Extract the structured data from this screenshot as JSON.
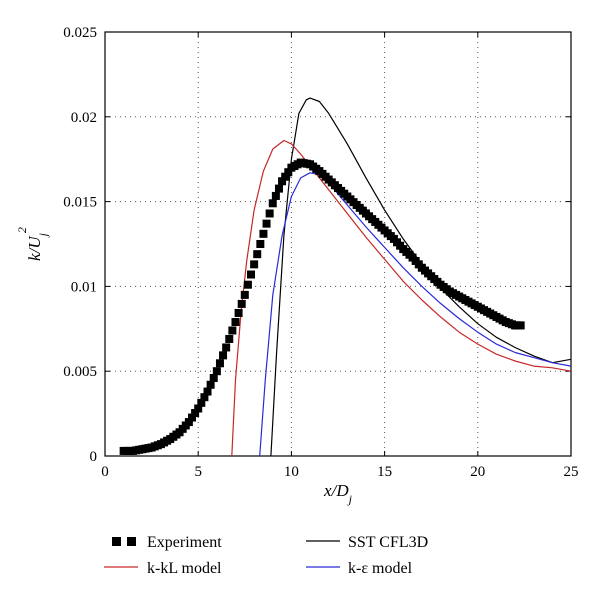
{
  "chart_data": {
    "type": "line",
    "xlabel": "x/D_j",
    "ylabel": "k/U_j^2",
    "xlim": [
      0,
      25
    ],
    "ylim": [
      0,
      0.025
    ],
    "x_ticks": [
      "0",
      "5",
      "10",
      "15",
      "20",
      "25"
    ],
    "y_ticks": [
      "0",
      "0.005",
      "0.01",
      "0.015",
      "0.02",
      "0.025"
    ],
    "grid": "dotted",
    "legend_position": "below-plot",
    "series": [
      {
        "name": "Experiment",
        "style": "square-markers",
        "color": "#000000",
        "points": [
          [
            1,
            0.0003
          ],
          [
            1.5,
            0.0003
          ],
          [
            2,
            0.0004
          ],
          [
            2.5,
            0.0005
          ],
          [
            3,
            0.0007
          ],
          [
            3.5,
            0.001
          ],
          [
            4,
            0.0014
          ],
          [
            4.5,
            0.002
          ],
          [
            5,
            0.0028
          ],
          [
            5.5,
            0.0038
          ],
          [
            6,
            0.005
          ],
          [
            6.5,
            0.0064
          ],
          [
            7,
            0.0079
          ],
          [
            7.5,
            0.0095
          ],
          [
            8,
            0.0113
          ],
          [
            8.5,
            0.0131
          ],
          [
            9,
            0.0149
          ],
          [
            9.5,
            0.0162
          ],
          [
            10,
            0.017
          ],
          [
            10.5,
            0.0173
          ],
          [
            11,
            0.0172
          ],
          [
            11.5,
            0.0168
          ],
          [
            12,
            0.0163
          ],
          [
            12.5,
            0.0158
          ],
          [
            13,
            0.0153
          ],
          [
            13.5,
            0.0148
          ],
          [
            14,
            0.0143
          ],
          [
            14.5,
            0.0138
          ],
          [
            15,
            0.0133
          ],
          [
            15.5,
            0.0128
          ],
          [
            16,
            0.0122
          ],
          [
            16.5,
            0.0117
          ],
          [
            17,
            0.0111
          ],
          [
            17.5,
            0.0106
          ],
          [
            18,
            0.0101
          ],
          [
            18.5,
            0.0097
          ],
          [
            19,
            0.0094
          ],
          [
            19.5,
            0.0091
          ],
          [
            20,
            0.0088
          ],
          [
            20.5,
            0.0085
          ],
          [
            21,
            0.0082
          ],
          [
            21.5,
            0.0079
          ],
          [
            22,
            0.0077
          ],
          [
            22.3,
            0.0077
          ]
        ]
      },
      {
        "name": "SST CFL3D",
        "style": "line",
        "color": "#000000",
        "points": [
          [
            8.9,
            0
          ],
          [
            9.2,
            0.006
          ],
          [
            9.6,
            0.013
          ],
          [
            10,
            0.0175
          ],
          [
            10.4,
            0.0202
          ],
          [
            10.8,
            0.021
          ],
          [
            11,
            0.0211
          ],
          [
            11.5,
            0.0209
          ],
          [
            12,
            0.0202
          ],
          [
            13,
            0.0184
          ],
          [
            14,
            0.0164
          ],
          [
            15,
            0.0145
          ],
          [
            16,
            0.0128
          ],
          [
            17,
            0.0113
          ],
          [
            18,
            0.0099
          ],
          [
            19,
            0.0088
          ],
          [
            20,
            0.0078
          ],
          [
            21,
            0.007
          ],
          [
            22,
            0.0064
          ],
          [
            23,
            0.0059
          ],
          [
            24,
            0.0055
          ],
          [
            25,
            0.0057
          ]
        ]
      },
      {
        "name": "k-kL model",
        "style": "line",
        "color": "#c62828",
        "points": [
          [
            6.8,
            0
          ],
          [
            7.0,
            0.0045
          ],
          [
            7.3,
            0.0085
          ],
          [
            7.6,
            0.0115
          ],
          [
            8,
            0.0145
          ],
          [
            8.5,
            0.0168
          ],
          [
            9,
            0.0181
          ],
          [
            9.6,
            0.0186
          ],
          [
            10,
            0.0184
          ],
          [
            10.5,
            0.0178
          ],
          [
            11,
            0.0171
          ],
          [
            12,
            0.0157
          ],
          [
            13,
            0.0143
          ],
          [
            14,
            0.0129
          ],
          [
            15,
            0.0116
          ],
          [
            16,
            0.0103
          ],
          [
            17,
            0.0092
          ],
          [
            18,
            0.0082
          ],
          [
            19,
            0.0073
          ],
          [
            20,
            0.0066
          ],
          [
            21,
            0.006
          ],
          [
            22,
            0.0056
          ],
          [
            23,
            0.0053
          ],
          [
            24,
            0.0052
          ],
          [
            25,
            0.005
          ]
        ]
      },
      {
        "name": "k-ε model",
        "style": "line",
        "color": "#2a2ad6",
        "points": [
          [
            8.3,
            0
          ],
          [
            8.6,
            0.0045
          ],
          [
            9,
            0.0095
          ],
          [
            9.5,
            0.013
          ],
          [
            10,
            0.0153
          ],
          [
            10.5,
            0.0164
          ],
          [
            11,
            0.0167
          ],
          [
            11.5,
            0.0166
          ],
          [
            12,
            0.0161
          ],
          [
            13,
            0.0148
          ],
          [
            14,
            0.0135
          ],
          [
            15,
            0.0123
          ],
          [
            16,
            0.0111
          ],
          [
            17,
            0.01
          ],
          [
            18,
            0.009
          ],
          [
            19,
            0.0081
          ],
          [
            20,
            0.0073
          ],
          [
            21,
            0.0066
          ],
          [
            22,
            0.0061
          ],
          [
            23,
            0.0058
          ],
          [
            24,
            0.0055
          ],
          [
            25,
            0.0053
          ]
        ]
      }
    ],
    "legend": [
      {
        "label": "Experiment"
      },
      {
        "label": "SST CFL3D"
      },
      {
        "label": "k-kL model"
      },
      {
        "label": "k-ε model"
      }
    ]
  }
}
